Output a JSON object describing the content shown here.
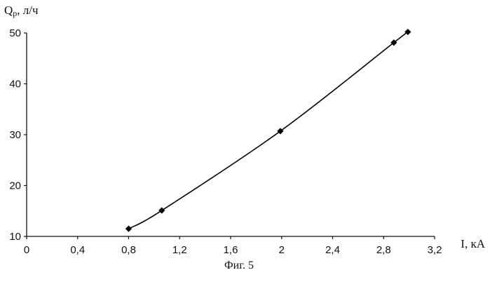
{
  "chart_data": {
    "type": "line",
    "ylabel_main": "Q",
    "ylabel_sub": "р",
    "ylabel_rest": ", л/ч",
    "xlabel": "I, кА",
    "caption": "Фиг. 5",
    "xlim": [
      0,
      3.2
    ],
    "ylim": [
      10,
      50
    ],
    "x_ticks": [
      0,
      0.4,
      0.8,
      1.2,
      1.6,
      2,
      2.4,
      2.8,
      3.2
    ],
    "x_tick_labels": [
      "0",
      "0,4",
      "0,8",
      "1,2",
      "1,6",
      "2",
      "2,4",
      "2,8",
      "3,2"
    ],
    "y_ticks": [
      10,
      20,
      30,
      40,
      50
    ],
    "y_tick_labels": [
      "10",
      "20",
      "30",
      "40",
      "50"
    ],
    "grid": false,
    "series": [
      {
        "x": [
          0.8,
          1.06,
          1.99,
          2.88,
          2.99
        ],
        "y": [
          11.5,
          15.1,
          30.7,
          48.1,
          50.2
        ]
      }
    ]
  }
}
